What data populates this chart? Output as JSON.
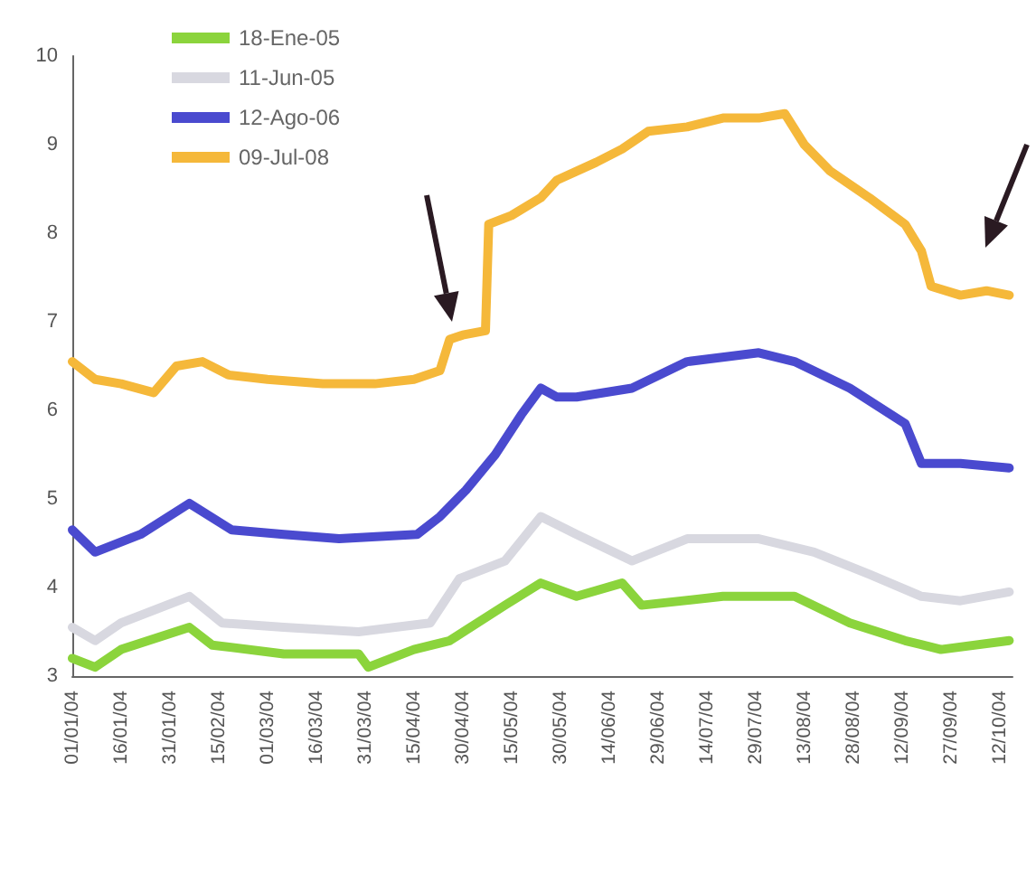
{
  "chart_data": {
    "type": "line",
    "marker": "none",
    "grid": false,
    "legend": "top left",
    "xlim": [
      "--01-01",
      "--10-16"
    ],
    "xticks": [
      {
        "value": "--01-01",
        "label": "01/01/04"
      },
      {
        "value": "--01-16",
        "label": "16/01/04"
      },
      {
        "value": "--01-31",
        "label": "31/01/04"
      },
      {
        "value": "--02-15",
        "label": "15/02/04"
      },
      {
        "value": "--03-01",
        "label": "01/03/04"
      },
      {
        "value": "--03-16",
        "label": "16/03/04"
      },
      {
        "value": "--03-31",
        "label": "31/03/04"
      },
      {
        "value": "--04-15",
        "label": "15/04/04"
      },
      {
        "value": "--04-30",
        "label": "30/04/04"
      },
      {
        "value": "--05-15",
        "label": "15/05/04"
      },
      {
        "value": "--05-30",
        "label": "30/05/04"
      },
      {
        "value": "--06-14",
        "label": "14/06/04"
      },
      {
        "value": "--06-29",
        "label": "29/06/04"
      },
      {
        "value": "--07-14",
        "label": "14/07/04"
      },
      {
        "value": "--07-29",
        "label": "29/07/04"
      },
      {
        "value": "--08-13",
        "label": "13/08/04"
      },
      {
        "value": "--08-28",
        "label": "28/08/04"
      },
      {
        "value": "--09-12",
        "label": "12/09/04"
      },
      {
        "value": "--09-27",
        "label": "27/09/04"
      },
      {
        "value": "--10-12",
        "label": "12/10/04"
      }
    ],
    "ylim": [
      3,
      10
    ],
    "yticks": [
      3,
      4,
      5,
      6,
      7,
      8,
      9,
      10
    ],
    "series": [
      {
        "name": "18-Ene-05",
        "color": "#8bd43c",
        "x": [
          "--01-01",
          "--01-08",
          "--01-16",
          "--02-06",
          "--02-13",
          "--03-06",
          "--03-29",
          "--04-01",
          "--04-15",
          "--04-26",
          "--05-13",
          "--05-24",
          "--06-04",
          "--06-18",
          "--06-24",
          "--07-19",
          "--08-10",
          "--08-27",
          "--09-13",
          "--09-24",
          "--10-15"
        ],
        "values": [
          3.2,
          3.1,
          3.3,
          3.55,
          3.35,
          3.25,
          3.25,
          3.1,
          3.3,
          3.4,
          3.8,
          4.05,
          3.9,
          4.05,
          3.8,
          3.9,
          3.9,
          3.6,
          3.4,
          3.3,
          3.4
        ]
      },
      {
        "name": "11-Jun-05",
        "color": "#d8d8e0",
        "x": [
          "--01-01",
          "--01-08",
          "--01-16",
          "--02-06",
          "--02-16",
          "--03-06",
          "--03-29",
          "--04-20",
          "--04-29",
          "--05-13",
          "--05-24",
          "--06-04",
          "--06-21",
          "--07-08",
          "--07-30",
          "--08-16",
          "--09-02",
          "--09-18",
          "--09-30",
          "--10-15"
        ],
        "values": [
          3.55,
          3.4,
          3.6,
          3.9,
          3.6,
          3.55,
          3.5,
          3.6,
          4.1,
          4.3,
          4.8,
          4.6,
          4.3,
          4.55,
          4.55,
          4.4,
          4.15,
          3.9,
          3.85,
          3.95
        ]
      },
      {
        "name": "12-Ago-06",
        "color": "#4a4acf",
        "x": [
          "--01-01",
          "--01-08",
          "--01-22",
          "--02-06",
          "--02-19",
          "--03-06",
          "--03-23",
          "--04-16",
          "--04-23",
          "--05-01",
          "--05-10",
          "--05-18",
          "--05-24",
          "--05-29",
          "--06-04",
          "--06-21",
          "--07-08",
          "--07-30",
          "--08-10",
          "--08-27",
          "--09-13",
          "--09-18",
          "--09-30",
          "--10-15"
        ],
        "values": [
          4.65,
          4.4,
          4.6,
          4.95,
          4.65,
          4.6,
          4.55,
          4.6,
          4.8,
          5.1,
          5.5,
          5.95,
          6.25,
          6.15,
          6.15,
          6.25,
          6.55,
          6.65,
          6.55,
          6.25,
          5.85,
          5.4,
          5.4,
          5.35
        ]
      },
      {
        "name": "09-Jul-08",
        "color": "#f5b83a",
        "x": [
          "--01-01",
          "--01-08",
          "--01-16",
          "--01-26",
          "--02-02",
          "--02-10",
          "--02-18",
          "--03-01",
          "--03-18",
          "--04-03",
          "--04-15",
          "--04-23",
          "--04-26",
          "--04-30",
          "--05-07",
          "--05-08",
          "--05-15",
          "--05-24",
          "--05-29",
          "--06-10",
          "--06-18",
          "--06-26",
          "--07-08",
          "--07-19",
          "--07-30",
          "--08-07",
          "--08-13",
          "--08-21",
          "--09-02",
          "--09-13",
          "--09-18",
          "--09-21",
          "--09-30",
          "--10-08",
          "--10-15"
        ],
        "values": [
          6.55,
          6.35,
          6.3,
          6.2,
          6.5,
          6.55,
          6.4,
          6.35,
          6.3,
          6.3,
          6.35,
          6.45,
          6.8,
          6.85,
          6.9,
          8.1,
          8.2,
          8.4,
          8.6,
          8.8,
          8.95,
          9.15,
          9.2,
          9.3,
          9.3,
          9.35,
          9.0,
          8.7,
          8.4,
          8.1,
          7.8,
          7.4,
          7.3,
          7.35,
          7.3
        ]
      }
    ]
  }
}
